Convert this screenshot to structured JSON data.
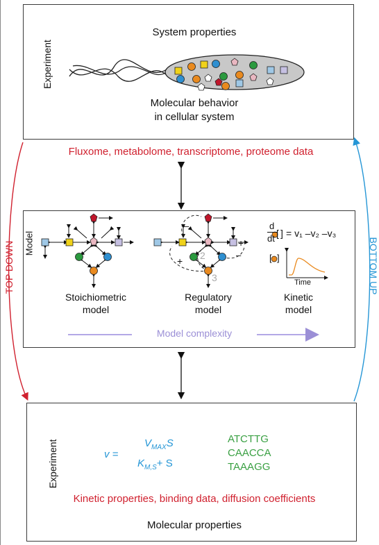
{
  "top_panel": {
    "side_label": "Experiment",
    "title": "System properties",
    "caption_line1": "Molecular behavior",
    "caption_line2": "in cellular system"
  },
  "omics_data": "Fluxome, metabolome, transcriptome, proteome data",
  "left_arrow_label": "TOP DOWN",
  "right_arrow_label": "BOTTOM UP",
  "middle_panel": {
    "side_label": "Model",
    "stoichiometric_line1": "Stoichiometric",
    "stoichiometric_line2": "model",
    "regulatory_line1": "Regulatory",
    "regulatory_line2": "model",
    "regulatory_marks": {
      "plus": "+",
      "minus": "–",
      "two": "2",
      "three": "3"
    },
    "kinetic_line1": "Kinetic",
    "kinetic_line2": "model",
    "kinetic_equation": {
      "d": "d",
      "dt": "dt",
      "rhs": "= v₁ –v₂ –v₃"
    },
    "inset_time_label": "Time",
    "complexity_label": "Model complexity"
  },
  "bottom_panel": {
    "side_label": "Experiment",
    "equation": {
      "lhs": "v =",
      "numerator": "V",
      "numerator_sub": "MAX",
      "numerator_tail": "S",
      "denominator": "K",
      "denominator_sub": "M,S",
      "denominator_tail": "+ S"
    },
    "sequences": [
      "ATCTTG",
      "CAACCA",
      "TAAAGG"
    ],
    "kinetic_properties": "Kinetic properties, binding data, diffusion coefficients",
    "molecular_properties": "Molecular properties"
  },
  "colors": {
    "red": "#d0202e",
    "blue": "#2596d6",
    "green": "#3aa043",
    "purple": "#9b8fd6",
    "node_lightblue": "#9fc8e6",
    "node_yellow": "#f0d21a",
    "node_pink": "#e9b7c1",
    "node_lavender": "#c6c0e2",
    "node_darkred": "#c0162b",
    "node_green": "#2b9a3f",
    "node_orange": "#e98a1f",
    "node_blue": "#2f8fd0"
  }
}
